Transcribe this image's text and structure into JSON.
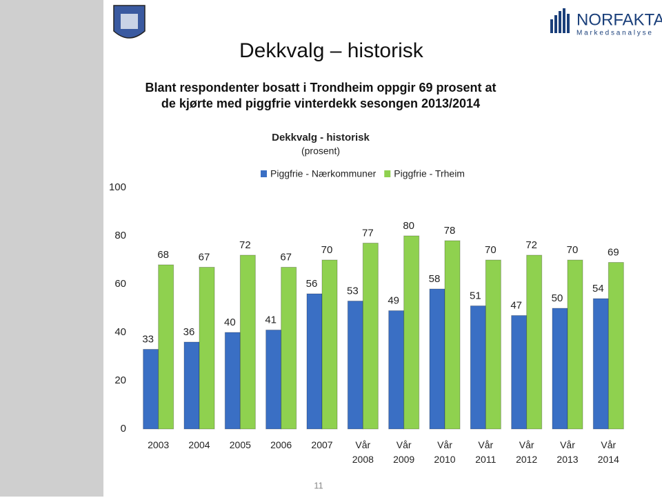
{
  "header": {
    "title": "Dekkvalg – historisk",
    "subtitle_lines": [
      "Blant respondenter bosatt i Trondheim oppgir 69 prosent at",
      "de kjørte med piggfrie vinterdekk sesongen 2013/2014"
    ],
    "logo_name": "NORFAKTA",
    "logo_tagline": "M a r k e d s a n a l y s e"
  },
  "chart_data": {
    "type": "bar",
    "title": "Dekkvalg - historisk",
    "subtitle": "(prosent)",
    "categories": [
      "2003",
      "2004",
      "2005",
      "2006",
      "2007",
      "Vår 2008",
      "Vår 2009",
      "Vår 2010",
      "Vår 2011",
      "Vår 2012",
      "Vår 2013",
      "Vår 2014"
    ],
    "series": [
      {
        "name": "Piggfrie - Nærkommuner",
        "color": "#3a6fc4",
        "values": [
          33,
          36,
          40,
          41,
          56,
          53,
          49,
          58,
          51,
          47,
          50,
          54
        ]
      },
      {
        "name": "Piggfrie - Trheim",
        "color": "#8fd14f",
        "values": [
          68,
          67,
          72,
          67,
          70,
          77,
          80,
          78,
          70,
          72,
          70,
          69
        ]
      }
    ],
    "ylim": [
      0,
      100
    ],
    "yticks": [
      0,
      20,
      40,
      60,
      80,
      100
    ],
    "grid": false,
    "legend": "top"
  },
  "footer": {
    "page_number": "11"
  }
}
